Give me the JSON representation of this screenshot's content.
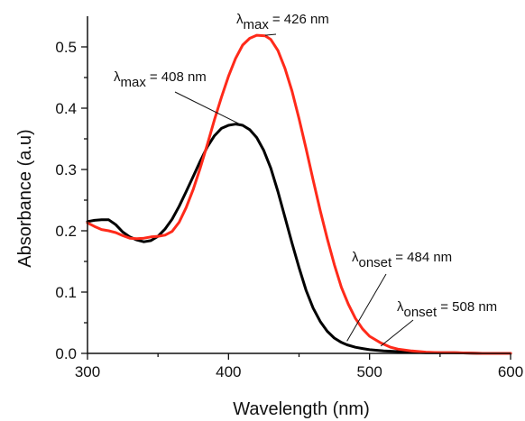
{
  "chart_data": {
    "type": "line",
    "title": "",
    "xlabel": "Wavelength (nm)",
    "ylabel": "Absorbance (a.u)",
    "xlim": [
      300,
      600
    ],
    "ylim": [
      0.0,
      0.55
    ],
    "xticks": [
      300,
      400,
      500,
      600
    ],
    "yticks": [
      0.0,
      0.1,
      0.2,
      0.3,
      0.4,
      0.5
    ],
    "ytick_labels": [
      "0.0",
      "0.1",
      "0.2",
      "0.3",
      "0.4",
      "0.5"
    ],
    "grid": false,
    "series": [
      {
        "color": "#000000",
        "x": [
          300,
          305,
          310,
          315,
          320,
          325,
          330,
          335,
          340,
          345,
          350,
          355,
          360,
          365,
          370,
          375,
          380,
          385,
          390,
          395,
          400,
          405,
          408,
          410,
          415,
          420,
          425,
          430,
          435,
          440,
          445,
          450,
          455,
          460,
          465,
          470,
          475,
          480,
          484,
          490,
          495,
          500,
          510,
          520,
          530,
          540,
          550,
          560,
          580,
          600
        ],
        "y": [
          0.215,
          0.217,
          0.218,
          0.218,
          0.21,
          0.198,
          0.19,
          0.185,
          0.182,
          0.184,
          0.191,
          0.203,
          0.219,
          0.24,
          0.264,
          0.289,
          0.314,
          0.337,
          0.355,
          0.367,
          0.372,
          0.374,
          0.373,
          0.372,
          0.365,
          0.352,
          0.331,
          0.302,
          0.264,
          0.222,
          0.18,
          0.14,
          0.103,
          0.074,
          0.052,
          0.036,
          0.025,
          0.018,
          0.014,
          0.01,
          0.008,
          0.006,
          0.004,
          0.003,
          0.002,
          0.001,
          0.001,
          0.001,
          0.0,
          0.0
        ]
      },
      {
        "color": "#ff2a1a",
        "x": [
          300,
          305,
          310,
          315,
          320,
          325,
          330,
          335,
          340,
          345,
          350,
          355,
          360,
          365,
          370,
          375,
          380,
          385,
          390,
          395,
          400,
          405,
          410,
          415,
          420,
          426,
          430,
          435,
          440,
          445,
          450,
          455,
          460,
          465,
          470,
          475,
          480,
          485,
          490,
          495,
          500,
          508,
          515,
          520,
          530,
          540,
          550,
          560,
          580,
          600
        ],
        "y": [
          0.213,
          0.207,
          0.202,
          0.2,
          0.197,
          0.192,
          0.188,
          0.187,
          0.188,
          0.19,
          0.191,
          0.193,
          0.199,
          0.214,
          0.238,
          0.268,
          0.303,
          0.341,
          0.381,
          0.418,
          0.452,
          0.481,
          0.503,
          0.514,
          0.519,
          0.518,
          0.512,
          0.494,
          0.465,
          0.428,
          0.383,
          0.334,
          0.283,
          0.233,
          0.187,
          0.145,
          0.108,
          0.08,
          0.057,
          0.04,
          0.028,
          0.017,
          0.01,
          0.007,
          0.004,
          0.002,
          0.001,
          0.001,
          0.0,
          0.0
        ]
      }
    ],
    "annotations": [
      {
        "symbol": "λ",
        "sub": "max",
        "text": "= 426 nm",
        "x": 426,
        "y": 0.519
      },
      {
        "symbol": "λ",
        "sub": "max",
        "text": "= 408 nm",
        "x": 408,
        "y": 0.374
      },
      {
        "symbol": "λ",
        "sub": "onset",
        "text": "= 484 nm",
        "x": 484,
        "y": 0.02
      },
      {
        "symbol": "λ",
        "sub": "onset",
        "text": "= 508 nm",
        "x": 508,
        "y": 0.012
      }
    ]
  }
}
